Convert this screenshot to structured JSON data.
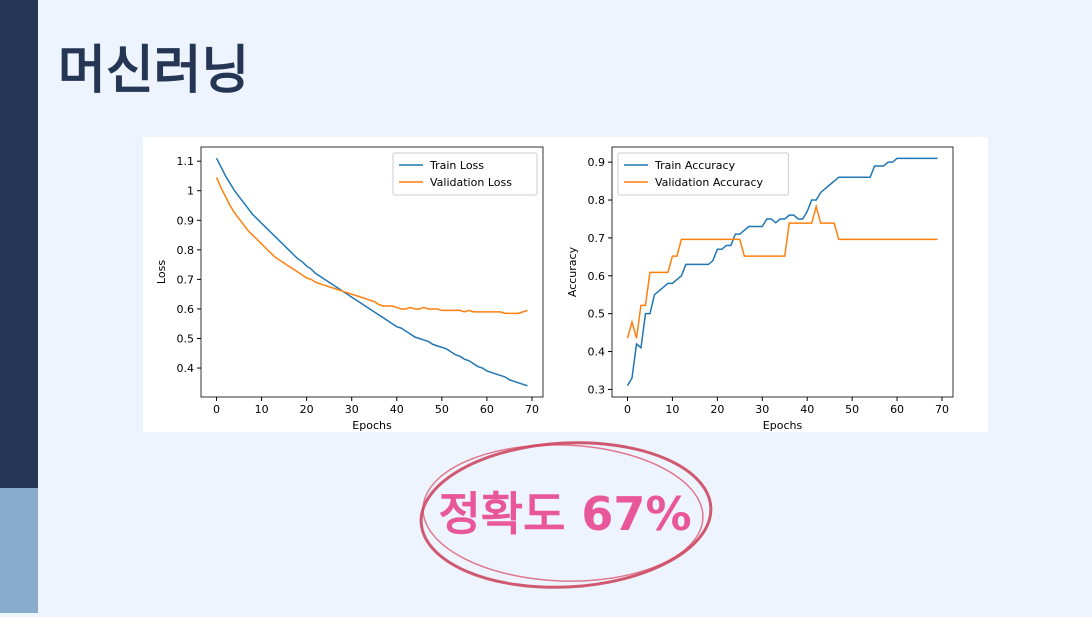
{
  "title": "머신러닝",
  "callout": "정확도 67%",
  "chart_data": [
    {
      "type": "line",
      "xlabel": "Epochs",
      "ylabel": "Loss",
      "legend": "upper right",
      "grid": false,
      "x": [
        0,
        1,
        2,
        3,
        4,
        5,
        6,
        7,
        8,
        9,
        10,
        11,
        12,
        13,
        14,
        15,
        16,
        17,
        18,
        19,
        20,
        21,
        22,
        23,
        24,
        25,
        26,
        27,
        28,
        29,
        30,
        31,
        32,
        33,
        34,
        35,
        36,
        37,
        38,
        39,
        40,
        41,
        42,
        43,
        44,
        45,
        46,
        47,
        48,
        49,
        50,
        51,
        52,
        53,
        54,
        55,
        56,
        57,
        58,
        59,
        60,
        61,
        62,
        63,
        64,
        65,
        66,
        67,
        68,
        69
      ],
      "xlim": [
        -3.45,
        72.45
      ],
      "xticks": [
        0,
        10,
        20,
        30,
        40,
        50,
        60,
        70
      ],
      "ylim": [
        0.302,
        1.148
      ],
      "yticks": [
        0.4,
        0.5,
        0.6,
        0.7,
        0.8,
        0.9,
        1.0,
        1.1
      ],
      "series": [
        {
          "name": "Train Loss",
          "color": "#1f77b4",
          "values": [
            1.11,
            1.08,
            1.05,
            1.025,
            1.0,
            0.98,
            0.96,
            0.94,
            0.92,
            0.905,
            0.89,
            0.875,
            0.86,
            0.845,
            0.83,
            0.815,
            0.8,
            0.785,
            0.77,
            0.76,
            0.745,
            0.735,
            0.72,
            0.71,
            0.7,
            0.69,
            0.68,
            0.67,
            0.66,
            0.65,
            0.64,
            0.63,
            0.62,
            0.61,
            0.6,
            0.59,
            0.58,
            0.57,
            0.56,
            0.55,
            0.54,
            0.535,
            0.525,
            0.515,
            0.505,
            0.5,
            0.495,
            0.49,
            0.48,
            0.475,
            0.47,
            0.465,
            0.455,
            0.445,
            0.44,
            0.43,
            0.425,
            0.415,
            0.405,
            0.4,
            0.39,
            0.385,
            0.38,
            0.375,
            0.37,
            0.36,
            0.355,
            0.35,
            0.345,
            0.34
          ]
        },
        {
          "name": "Validation Loss",
          "color": "#ff7f0e",
          "values": [
            1.045,
            1.01,
            0.98,
            0.95,
            0.925,
            0.905,
            0.885,
            0.865,
            0.85,
            0.835,
            0.82,
            0.805,
            0.79,
            0.775,
            0.765,
            0.755,
            0.745,
            0.735,
            0.725,
            0.715,
            0.705,
            0.7,
            0.69,
            0.685,
            0.68,
            0.675,
            0.67,
            0.665,
            0.66,
            0.655,
            0.65,
            0.645,
            0.64,
            0.635,
            0.63,
            0.625,
            0.615,
            0.61,
            0.61,
            0.61,
            0.605,
            0.6,
            0.6,
            0.605,
            0.6,
            0.6,
            0.605,
            0.6,
            0.6,
            0.6,
            0.595,
            0.595,
            0.595,
            0.595,
            0.595,
            0.59,
            0.595,
            0.59,
            0.59,
            0.59,
            0.59,
            0.59,
            0.59,
            0.59,
            0.585,
            0.585,
            0.585,
            0.585,
            0.59,
            0.595
          ]
        }
      ]
    },
    {
      "type": "line",
      "xlabel": "Epochs",
      "ylabel": "Accuracy",
      "legend": "upper left",
      "grid": false,
      "x": [
        0,
        1,
        2,
        3,
        4,
        5,
        6,
        7,
        8,
        9,
        10,
        11,
        12,
        13,
        14,
        15,
        16,
        17,
        18,
        19,
        20,
        21,
        22,
        23,
        24,
        25,
        26,
        27,
        28,
        29,
        30,
        31,
        32,
        33,
        34,
        35,
        36,
        37,
        38,
        39,
        40,
        41,
        42,
        43,
        44,
        45,
        46,
        47,
        48,
        49,
        50,
        51,
        52,
        53,
        54,
        55,
        56,
        57,
        58,
        59,
        60,
        61,
        62,
        63,
        64,
        65,
        66,
        67,
        68,
        69
      ],
      "xlim": [
        -3.45,
        72.45
      ],
      "xticks": [
        0,
        10,
        20,
        30,
        40,
        50,
        60,
        70
      ],
      "ylim": [
        0.28,
        0.94
      ],
      "yticks": [
        0.3,
        0.4,
        0.5,
        0.6,
        0.7,
        0.8,
        0.9
      ],
      "series": [
        {
          "name": "Train Accuracy",
          "color": "#1f77b4",
          "values": [
            0.31,
            0.33,
            0.42,
            0.41,
            0.5,
            0.5,
            0.55,
            0.56,
            0.57,
            0.58,
            0.58,
            0.59,
            0.6,
            0.63,
            0.63,
            0.63,
            0.63,
            0.63,
            0.63,
            0.64,
            0.67,
            0.67,
            0.68,
            0.68,
            0.71,
            0.71,
            0.72,
            0.73,
            0.73,
            0.73,
            0.73,
            0.75,
            0.75,
            0.74,
            0.75,
            0.75,
            0.76,
            0.76,
            0.75,
            0.75,
            0.77,
            0.8,
            0.8,
            0.82,
            0.83,
            0.84,
            0.85,
            0.86,
            0.86,
            0.86,
            0.86,
            0.86,
            0.86,
            0.86,
            0.86,
            0.89,
            0.89,
            0.89,
            0.9,
            0.9,
            0.91,
            0.91,
            0.91,
            0.91,
            0.91,
            0.91,
            0.91,
            0.91,
            0.91,
            0.91
          ]
        },
        {
          "name": "Validation Accuracy",
          "color": "#ff7f0e",
          "values": [
            0.435,
            0.478,
            0.435,
            0.522,
            0.522,
            0.609,
            0.609,
            0.609,
            0.609,
            0.609,
            0.652,
            0.652,
            0.696,
            0.696,
            0.696,
            0.696,
            0.696,
            0.696,
            0.696,
            0.696,
            0.696,
            0.696,
            0.696,
            0.696,
            0.696,
            0.696,
            0.652,
            0.652,
            0.652,
            0.652,
            0.652,
            0.652,
            0.652,
            0.652,
            0.652,
            0.652,
            0.739,
            0.739,
            0.739,
            0.739,
            0.739,
            0.739,
            0.783,
            0.739,
            0.739,
            0.739,
            0.739,
            0.696,
            0.696,
            0.696,
            0.696,
            0.696,
            0.696,
            0.696,
            0.696,
            0.696,
            0.696,
            0.696,
            0.696,
            0.696,
            0.696,
            0.696,
            0.696,
            0.696,
            0.696,
            0.696,
            0.696,
            0.696,
            0.696,
            0.696
          ]
        }
      ]
    }
  ]
}
